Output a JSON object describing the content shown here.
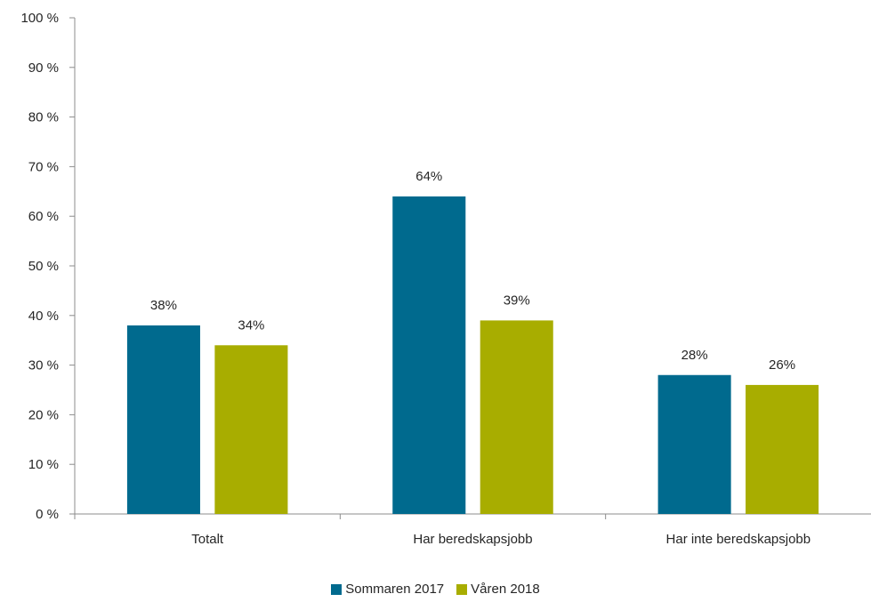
{
  "chart_data": {
    "type": "bar",
    "categories": [
      "Totalt",
      "Har beredskapsjobb",
      "Har inte beredskapsjobb"
    ],
    "series": [
      {
        "name": "Sommaren 2017",
        "values": [
          38,
          64,
          28
        ],
        "labels": [
          "38%",
          "64%",
          "28%"
        ],
        "color": "#006a8e"
      },
      {
        "name": "Våren 2018",
        "values": [
          34,
          39,
          26
        ],
        "labels": [
          "34%",
          "39%",
          "26%"
        ],
        "color": "#a8ad00"
      }
    ],
    "ylim": [
      0,
      100
    ],
    "yticks": [
      0,
      10,
      20,
      30,
      40,
      50,
      60,
      70,
      80,
      90,
      100
    ],
    "ytick_labels": [
      "0 %",
      "10 %",
      "20 %",
      "30 %",
      "40 %",
      "50 %",
      "60 %",
      "70 %",
      "80 %",
      "90 %",
      "100 %"
    ],
    "grid": false,
    "legend_position": "bottom"
  }
}
